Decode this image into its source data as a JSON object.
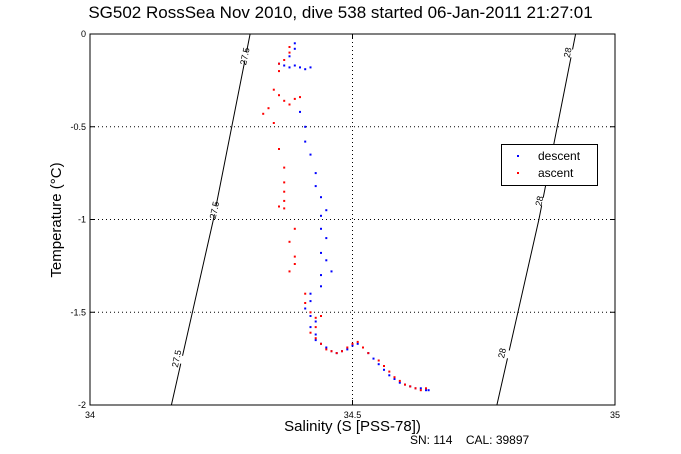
{
  "chart_data": {
    "type": "scatter",
    "title": "SG502 RossSea Nov 2010, dive 538 started 06-Jan-2011 21:27:01",
    "xlabel": "Salinity (S [PSS-78])",
    "ylabel": "Temperature (°C)",
    "xlim": [
      34,
      35
    ],
    "ylim": [
      -2,
      0
    ],
    "xticks": [
      "34",
      "34.5",
      "35"
    ],
    "yticks": [
      "0",
      "-0.5",
      "-1",
      "-1.5",
      "-2"
    ],
    "grid": true,
    "legend_position": "right",
    "series": [
      {
        "name": "descent",
        "color": "#0000ff",
        "points": [
          [
            34.36,
            -0.16
          ],
          [
            34.37,
            -0.17
          ],
          [
            34.38,
            -0.18
          ],
          [
            34.39,
            -0.17
          ],
          [
            34.4,
            -0.18
          ],
          [
            34.41,
            -0.19
          ],
          [
            34.42,
            -0.18
          ],
          [
            34.38,
            -0.12
          ],
          [
            34.39,
            -0.08
          ],
          [
            34.39,
            -0.05
          ],
          [
            34.4,
            -0.42
          ],
          [
            34.41,
            -0.5
          ],
          [
            34.41,
            -0.58
          ],
          [
            34.42,
            -0.65
          ],
          [
            34.43,
            -0.75
          ],
          [
            34.43,
            -0.82
          ],
          [
            34.44,
            -0.88
          ],
          [
            34.45,
            -0.95
          ],
          [
            34.44,
            -0.98
          ],
          [
            34.44,
            -1.05
          ],
          [
            34.45,
            -1.1
          ],
          [
            34.44,
            -1.18
          ],
          [
            34.45,
            -1.22
          ],
          [
            34.44,
            -1.3
          ],
          [
            34.44,
            -1.36
          ],
          [
            34.46,
            -1.28
          ],
          [
            34.42,
            -1.4
          ],
          [
            34.42,
            -1.44
          ],
          [
            34.41,
            -1.48
          ],
          [
            34.42,
            -1.52
          ],
          [
            34.43,
            -1.55
          ],
          [
            34.42,
            -1.58
          ],
          [
            34.43,
            -1.62
          ],
          [
            34.43,
            -1.65
          ],
          [
            34.44,
            -1.67
          ],
          [
            34.45,
            -1.69
          ],
          [
            34.46,
            -1.71
          ],
          [
            34.47,
            -1.72
          ],
          [
            34.48,
            -1.71
          ],
          [
            34.49,
            -1.7
          ],
          [
            34.5,
            -1.68
          ],
          [
            34.51,
            -1.67
          ],
          [
            34.52,
            -1.69
          ],
          [
            34.53,
            -1.72
          ],
          [
            34.54,
            -1.75
          ],
          [
            34.55,
            -1.78
          ],
          [
            34.56,
            -1.81
          ],
          [
            34.57,
            -1.84
          ],
          [
            34.58,
            -1.86
          ],
          [
            34.59,
            -1.88
          ],
          [
            34.6,
            -1.89
          ],
          [
            34.61,
            -1.9
          ],
          [
            34.62,
            -1.91
          ],
          [
            34.63,
            -1.91
          ],
          [
            34.64,
            -1.92
          ],
          [
            34.645,
            -1.92
          ]
        ]
      },
      {
        "name": "ascent",
        "color": "#ff0000",
        "points": [
          [
            34.38,
            -0.07
          ],
          [
            34.38,
            -0.1
          ],
          [
            34.37,
            -0.14
          ],
          [
            34.36,
            -0.16
          ],
          [
            34.36,
            -0.2
          ],
          [
            34.35,
            -0.3
          ],
          [
            34.36,
            -0.33
          ],
          [
            34.37,
            -0.36
          ],
          [
            34.38,
            -0.38
          ],
          [
            34.39,
            -0.35
          ],
          [
            34.4,
            -0.34
          ],
          [
            34.34,
            -0.4
          ],
          [
            34.33,
            -0.43
          ],
          [
            34.35,
            -0.48
          ],
          [
            34.36,
            -0.62
          ],
          [
            34.37,
            -0.72
          ],
          [
            34.37,
            -0.8
          ],
          [
            34.37,
            -0.85
          ],
          [
            34.37,
            -0.9
          ],
          [
            34.36,
            -0.93
          ],
          [
            34.37,
            -0.94
          ],
          [
            34.39,
            -1.05
          ],
          [
            34.38,
            -1.12
          ],
          [
            34.39,
            -1.2
          ],
          [
            34.39,
            -1.24
          ],
          [
            34.38,
            -1.28
          ],
          [
            34.41,
            -1.4
          ],
          [
            34.41,
            -1.45
          ],
          [
            34.42,
            -1.5
          ],
          [
            34.43,
            -1.53
          ],
          [
            34.44,
            -1.52
          ],
          [
            34.43,
            -1.58
          ],
          [
            34.42,
            -1.61
          ],
          [
            34.43,
            -1.64
          ],
          [
            34.44,
            -1.67
          ],
          [
            34.45,
            -1.7
          ],
          [
            34.46,
            -1.71
          ],
          [
            34.47,
            -1.72
          ],
          [
            34.48,
            -1.71
          ],
          [
            34.49,
            -1.69
          ],
          [
            34.5,
            -1.67
          ],
          [
            34.51,
            -1.66
          ],
          [
            34.52,
            -1.69
          ],
          [
            34.53,
            -1.72
          ],
          [
            34.55,
            -1.76
          ],
          [
            34.56,
            -1.79
          ],
          [
            34.57,
            -1.82
          ],
          [
            34.58,
            -1.85
          ],
          [
            34.59,
            -1.87
          ],
          [
            34.6,
            -1.89
          ],
          [
            34.61,
            -1.9
          ],
          [
            34.62,
            -1.91
          ],
          [
            34.63,
            -1.92
          ],
          [
            34.64,
            -1.91
          ]
        ]
      }
    ],
    "isopycnals": [
      {
        "label": "27.5",
        "points": [
          [
            34.155,
            -2
          ],
          [
            34.235,
            -1.0
          ],
          [
            34.305,
            0
          ]
        ]
      },
      {
        "label": "28",
        "points": [
          [
            34.775,
            -2
          ],
          [
            34.855,
            -1.0
          ],
          [
            34.925,
            0
          ]
        ]
      }
    ],
    "isopycnal_labels": [
      {
        "text": "27.5",
        "at": [
          34.295,
          -0.12
        ]
      },
      {
        "text": "27.5",
        "at": [
          34.237,
          -0.95
        ]
      },
      {
        "text": "27.5",
        "at": [
          34.165,
          -1.75
        ]
      },
      {
        "text": "28",
        "at": [
          34.91,
          -0.1
        ]
      },
      {
        "text": "28",
        "at": [
          34.856,
          -0.9
        ]
      },
      {
        "text": "28",
        "at": [
          34.785,
          -1.72
        ]
      }
    ]
  },
  "footnote": {
    "sn": "SN: 114",
    "cal": "CAL: 39897"
  }
}
